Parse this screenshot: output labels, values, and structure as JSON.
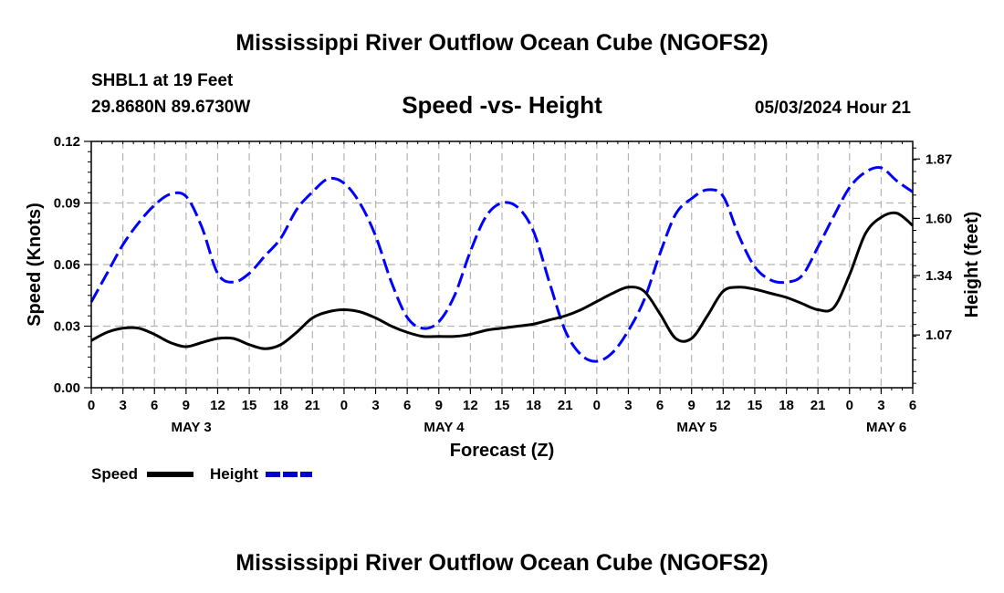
{
  "chart_data": {
    "type": "line",
    "title": "Mississippi River Outflow Ocean Cube (NGOFS2)",
    "subtitle": "Speed -vs- Height",
    "station": "SHBL1 at 19 Feet",
    "location": "29.8680N  89.6730W",
    "datetime": "05/03/2024 Hour 21",
    "xlabel": "Forecast (Z)",
    "ylabel_left": "Speed (Knots)",
    "ylabel_right": "Height (feet)",
    "x_range_hours": [
      0,
      78
    ],
    "x_tick_labels": [
      "0",
      "3",
      "6",
      "9",
      "12",
      "15",
      "18",
      "21",
      "0",
      "3",
      "6",
      "9",
      "12",
      "15",
      "18",
      "21",
      "0",
      "3",
      "6",
      "9",
      "12",
      "15",
      "18",
      "21",
      "0",
      "3",
      "6"
    ],
    "day_labels": [
      {
        "label": "MAY 3",
        "hour": 9.5
      },
      {
        "label": "MAY 4",
        "hour": 33.5
      },
      {
        "label": "MAY 5",
        "hour": 57.5
      },
      {
        "label": "MAY 6",
        "hour": 75.5
      }
    ],
    "ylim_left": [
      0,
      0.12
    ],
    "yticks_left": [
      "0.00",
      "0.03",
      "0.06",
      "0.09",
      "0.12"
    ],
    "ylim_right": [
      0.83,
      1.95
    ],
    "yticks_right": [
      {
        "label": "1.07",
        "value": 1.07
      },
      {
        "label": "1.34",
        "value": 1.34
      },
      {
        "label": "1.60",
        "value": 1.6
      },
      {
        "label": "1.87",
        "value": 1.87
      }
    ],
    "grid": true,
    "series": [
      {
        "name": "Speed",
        "axis": "left",
        "color": "#000000",
        "style": "solid",
        "hours": [
          0,
          1.5,
          3,
          4.5,
          6,
          7.5,
          9,
          10.5,
          12,
          13.5,
          15,
          16.5,
          18,
          19.5,
          21,
          22.5,
          24,
          25.5,
          27,
          28.5,
          30,
          31.5,
          33,
          34.5,
          36,
          37.5,
          39,
          40.5,
          42,
          43.5,
          45,
          46.5,
          48,
          49.5,
          51,
          52.5,
          54,
          55.5,
          57,
          58.5,
          60,
          61.5,
          63,
          64.5,
          66,
          67.5,
          69,
          70.5,
          72,
          73.5,
          75,
          76.5,
          78
        ],
        "values": [
          0.023,
          0.027,
          0.029,
          0.029,
          0.026,
          0.022,
          0.02,
          0.022,
          0.024,
          0.024,
          0.021,
          0.019,
          0.021,
          0.027,
          0.034,
          0.037,
          0.038,
          0.037,
          0.034,
          0.03,
          0.027,
          0.025,
          0.025,
          0.025,
          0.026,
          0.028,
          0.029,
          0.03,
          0.031,
          0.033,
          0.035,
          0.038,
          0.042,
          0.046,
          0.049,
          0.047,
          0.036,
          0.024,
          0.024,
          0.035,
          0.047,
          0.049,
          0.048,
          0.046,
          0.044,
          0.041,
          0.038,
          0.039,
          0.055,
          0.075,
          0.083,
          0.085,
          0.079
        ]
      },
      {
        "name": "Height",
        "axis": "right",
        "color": "#0000ff",
        "style": "dashed",
        "hours": [
          0,
          1.5,
          3,
          4.5,
          6,
          7.5,
          9,
          10.5,
          12,
          13.5,
          15,
          16.5,
          18,
          19.5,
          21,
          22.5,
          24,
          25.5,
          27,
          28.5,
          30,
          31.5,
          33,
          34.5,
          36,
          37.5,
          39,
          40.5,
          42,
          43.5,
          45,
          46.5,
          48,
          49.5,
          51,
          52.5,
          54,
          55.5,
          57,
          58.5,
          60,
          61.5,
          63,
          64.5,
          66,
          67.5,
          69,
          70.5,
          72,
          73.5,
          75,
          76.5,
          78
        ],
        "values": [
          1.22,
          1.35,
          1.48,
          1.58,
          1.66,
          1.71,
          1.7,
          1.56,
          1.35,
          1.31,
          1.35,
          1.43,
          1.51,
          1.64,
          1.72,
          1.78,
          1.76,
          1.67,
          1.52,
          1.31,
          1.15,
          1.1,
          1.13,
          1.25,
          1.45,
          1.61,
          1.67,
          1.65,
          1.54,
          1.31,
          1.09,
          0.98,
          0.95,
          0.99,
          1.09,
          1.23,
          1.44,
          1.62,
          1.69,
          1.73,
          1.7,
          1.52,
          1.38,
          1.32,
          1.31,
          1.34,
          1.47,
          1.61,
          1.74,
          1.81,
          1.83,
          1.77,
          1.72
        ]
      }
    ],
    "legend": [
      {
        "label": "Speed",
        "color": "#000000"
      },
      {
        "label": "Height",
        "color": "#0000cc"
      }
    ],
    "footer_title": "Mississippi River Outflow Ocean Cube (NGOFS2)"
  }
}
